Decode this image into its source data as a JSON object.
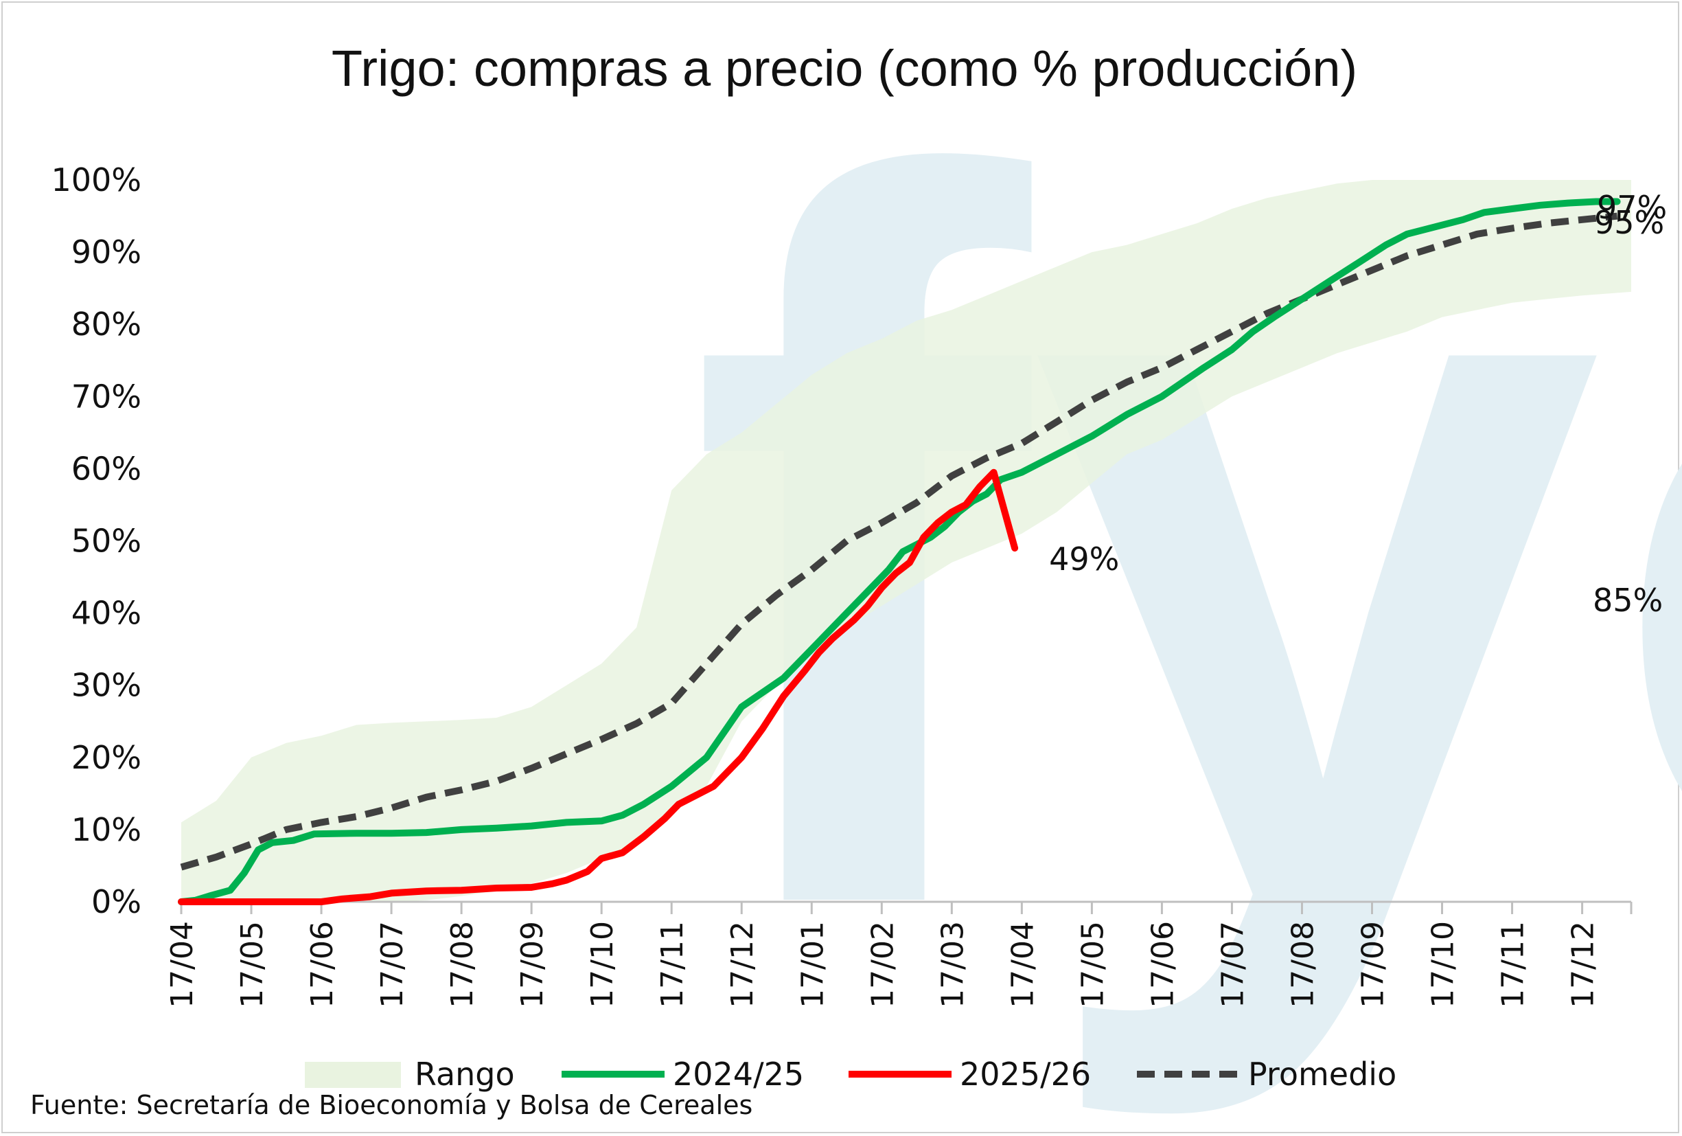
{
  "chart_data": {
    "type": "line",
    "title": "Trigo: compras a precio (como % producción)",
    "source": "Fuente: Secretaría de Bioeconomía y Bolsa de Cereales",
    "watermark": "fyo",
    "ylim": [
      0,
      100
    ],
    "y_ticks": [
      "0%",
      "10%",
      "20%",
      "30%",
      "40%",
      "50%",
      "60%",
      "70%",
      "80%",
      "90%",
      "100%"
    ],
    "x_ticks": [
      "17/04",
      "17/05",
      "17/06",
      "17/07",
      "17/08",
      "17/09",
      "17/10",
      "17/11",
      "17/12",
      "17/01",
      "17/02",
      "17/03",
      "17/04",
      "17/05",
      "17/06",
      "17/07",
      "17/08",
      "17/09",
      "17/10",
      "17/11",
      "17/12"
    ],
    "x_range_months": [
      0,
      20.7
    ],
    "legend": [
      "Rango",
      "2024/25",
      "2025/26",
      "Promedio"
    ],
    "legend_position": "bottom",
    "colors": {
      "range": "#e9f3e0",
      "s2024": "#00b050",
      "s2025": "#ff0000",
      "avg": "#404040"
    },
    "range": {
      "x": [
        0,
        0.5,
        1.0,
        1.5,
        2.0,
        2.5,
        3.0,
        3.5,
        4.0,
        4.5,
        5.0,
        5.5,
        6.0,
        6.5,
        7.0,
        7.5,
        8.0,
        8.5,
        9.0,
        9.5,
        10.0,
        10.5,
        11.0,
        11.5,
        12.0,
        12.5,
        13.0,
        13.5,
        14.0,
        14.5,
        15.0,
        15.5,
        16.0,
        16.5,
        17.0,
        17.5,
        18.0,
        18.5,
        19.0,
        19.5,
        20.0,
        20.7
      ],
      "low": [
        0,
        0,
        0,
        0,
        0,
        0,
        0,
        0.2,
        0.8,
        1.5,
        2.5,
        4,
        6,
        8,
        12,
        16,
        25,
        30,
        35,
        38,
        41,
        44,
        47,
        49,
        51,
        54,
        58,
        62,
        64,
        67,
        70,
        72,
        74,
        76,
        77.5,
        79,
        81,
        82,
        83,
        83.5,
        84,
        84.5
      ],
      "high": [
        11,
        14,
        20,
        22,
        23,
        24.5,
        24.8,
        25,
        25.2,
        25.5,
        27,
        30,
        33,
        38,
        57,
        62,
        65,
        69,
        73,
        76,
        78,
        80.5,
        82,
        84,
        86,
        88,
        90,
        91,
        92.5,
        94,
        96,
        97.5,
        98.5,
        99.5,
        100,
        100,
        100,
        100,
        100,
        100,
        100,
        100
      ]
    },
    "series": [
      {
        "name": "2024/25",
        "end_label": "97%",
        "x": [
          0,
          0.2,
          0.4,
          0.7,
          0.9,
          1.1,
          1.3,
          1.6,
          1.9,
          2.5,
          3.0,
          3.5,
          4.0,
          4.5,
          5.0,
          5.5,
          6.0,
          6.3,
          6.6,
          7.0,
          7.5,
          8.0,
          8.3,
          8.6,
          9.0,
          9.3,
          9.6,
          9.9,
          10.1,
          10.3,
          10.5,
          10.7,
          10.9,
          11.1,
          11.3,
          11.5,
          11.7,
          12.0,
          12.5,
          13.0,
          13.5,
          14.0,
          14.3,
          14.6,
          15.0,
          15.3,
          15.6,
          16.0,
          16.4,
          16.8,
          17.2,
          17.5,
          17.9,
          18.3,
          18.6,
          19.0,
          19.4,
          19.8,
          20.2,
          20.5
        ],
        "values": [
          0,
          0.2,
          0.8,
          1.6,
          4,
          7.2,
          8.2,
          8.5,
          9.4,
          9.5,
          9.5,
          9.6,
          10,
          10.2,
          10.5,
          11,
          11.2,
          12,
          13.5,
          16,
          20,
          27,
          29,
          31,
          35,
          38,
          41,
          44,
          46,
          48.5,
          49.5,
          50.5,
          52,
          54,
          55.5,
          56.5,
          58.5,
          59.5,
          62,
          64.5,
          67.5,
          70,
          72,
          74,
          76.5,
          79,
          81,
          83.5,
          86,
          88.5,
          91,
          92.5,
          93.5,
          94.5,
          95.5,
          96,
          96.5,
          96.8,
          97,
          97
        ]
      },
      {
        "name": "2025/26",
        "end_label": "49%",
        "x": [
          0,
          0.5,
          1.0,
          1.5,
          2.0,
          2.3,
          2.7,
          3.0,
          3.5,
          4.0,
          4.5,
          5.0,
          5.3,
          5.5,
          5.8,
          6.0,
          6.3,
          6.6,
          6.9,
          7.1,
          7.3,
          7.6,
          8.0,
          8.3,
          8.6,
          8.9,
          9.1,
          9.3,
          9.6,
          9.8,
          10.0,
          10.2,
          10.4,
          10.6,
          10.8,
          11.0,
          11.2,
          11.4,
          11.6,
          11.9
        ],
        "values": [
          0,
          0,
          0,
          0,
          0,
          0.4,
          0.7,
          1.2,
          1.5,
          1.6,
          1.9,
          2.0,
          2.5,
          3.0,
          4.2,
          6.0,
          6.8,
          9.0,
          11.5,
          13.5,
          14.5,
          16.0,
          20.0,
          24.0,
          28.5,
          32.0,
          34.5,
          36.5,
          39.0,
          41.0,
          43.5,
          45.5,
          47.0,
          50.5,
          52.5,
          54.0,
          55.0,
          57.5,
          59.5,
          49.0
        ]
      },
      {
        "name": "Promedio",
        "end_label": "95%",
        "x": [
          0,
          0.5,
          1.0,
          1.5,
          2.0,
          2.5,
          3.0,
          3.5,
          4.0,
          4.5,
          5.0,
          5.5,
          6.0,
          6.5,
          7.0,
          7.5,
          8.0,
          8.5,
          9.0,
          9.5,
          10.0,
          10.5,
          11.0,
          11.5,
          12.0,
          12.5,
          13.0,
          13.5,
          14.0,
          14.5,
          15.0,
          15.5,
          16.0,
          16.5,
          17.0,
          17.5,
          18.0,
          18.5,
          19.0,
          19.5,
          20.0,
          20.5
        ],
        "values": [
          4.8,
          6.2,
          8,
          10,
          11,
          11.8,
          13,
          14.5,
          15.5,
          16.7,
          18.5,
          20.5,
          22.5,
          24.7,
          27.5,
          33,
          38.5,
          42.5,
          46,
          50,
          52.5,
          55.3,
          59,
          61.5,
          63.5,
          66.5,
          69.5,
          72,
          74,
          76.5,
          79,
          81.5,
          83.5,
          85.5,
          87.5,
          89.5,
          91,
          92.5,
          93.3,
          94,
          94.5,
          95
        ]
      }
    ],
    "extra_labels": [
      {
        "text": "85%"
      }
    ]
  }
}
